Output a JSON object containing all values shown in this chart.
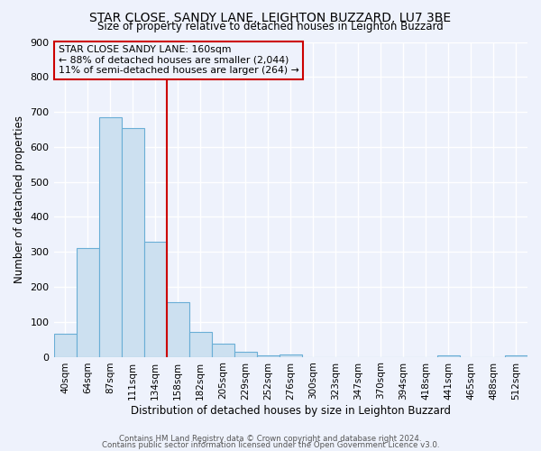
{
  "title": "STAR CLOSE, SANDY LANE, LEIGHTON BUZZARD, LU7 3BE",
  "subtitle": "Size of property relative to detached houses in Leighton Buzzard",
  "xlabel": "Distribution of detached houses by size in Leighton Buzzard",
  "ylabel": "Number of detached properties",
  "bin_labels": [
    "40sqm",
    "64sqm",
    "87sqm",
    "111sqm",
    "134sqm",
    "158sqm",
    "182sqm",
    "205sqm",
    "229sqm",
    "252sqm",
    "276sqm",
    "300sqm",
    "323sqm",
    "347sqm",
    "370sqm",
    "394sqm",
    "418sqm",
    "441sqm",
    "465sqm",
    "488sqm",
    "512sqm"
  ],
  "bar_values": [
    65,
    310,
    685,
    655,
    330,
    155,
    70,
    37,
    15,
    5,
    7,
    0,
    0,
    0,
    0,
    0,
    0,
    5,
    0,
    0,
    5
  ],
  "bar_color": "#cce0f0",
  "bar_edge_color": "#6aaed6",
  "vline_index": 5,
  "vline_color": "#cc0000",
  "annotation_line1": "STAR CLOSE SANDY LANE: 160sqm",
  "annotation_line2": "← 88% of detached houses are smaller (2,044)",
  "annotation_line3": "11% of semi-detached houses are larger (264) →",
  "annotation_box_color": "#cc0000",
  "ylim": [
    0,
    900
  ],
  "yticks": [
    0,
    100,
    200,
    300,
    400,
    500,
    600,
    700,
    800,
    900
  ],
  "footer1": "Contains HM Land Registry data © Crown copyright and database right 2024.",
  "footer2": "Contains public sector information licensed under the Open Government Licence v3.0.",
  "background_color": "#eef2fc",
  "grid_color": "#ffffff"
}
